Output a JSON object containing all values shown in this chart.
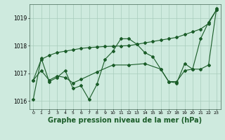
{
  "background_color": "#ceeade",
  "grid_color": "#a8ccbc",
  "line_color": "#1a5c28",
  "xlabel": "Graphe pression niveau de la mer (hPa)",
  "xlabel_fontsize": 7,
  "ylim": [
    1015.7,
    1019.5
  ],
  "xlim": [
    -0.5,
    23.5
  ],
  "yticks": [
    1016,
    1017,
    1018,
    1019
  ],
  "ytick_fontsize": 5.5,
  "xtick_fontsize": 4.5,
  "line1_x": [
    0,
    1,
    2,
    3,
    4,
    5,
    6,
    7,
    8,
    9,
    10,
    11,
    12,
    13,
    14,
    15,
    16,
    17,
    18,
    19,
    20,
    21,
    22,
    23
  ],
  "line1_y": [
    1016.05,
    1017.55,
    1016.7,
    1016.85,
    1017.1,
    1016.45,
    1016.55,
    1016.05,
    1016.6,
    1017.5,
    1017.8,
    1018.25,
    1018.25,
    1018.05,
    1017.75,
    1017.6,
    1017.15,
    1016.7,
    1016.65,
    1017.35,
    1017.15,
    1018.25,
    1018.85,
    1019.3
  ],
  "line2_x": [
    0,
    1,
    2,
    3,
    4,
    5,
    6,
    7,
    8,
    9,
    10,
    11,
    12,
    13,
    14,
    15,
    16,
    17,
    18,
    19,
    20,
    21,
    22,
    23
  ],
  "line2_y": [
    1016.75,
    1017.5,
    1017.65,
    1017.75,
    1017.8,
    1017.85,
    1017.9,
    1017.93,
    1017.95,
    1017.97,
    1017.98,
    1017.99,
    1018.0,
    1018.05,
    1018.1,
    1018.15,
    1018.2,
    1018.25,
    1018.3,
    1018.4,
    1018.5,
    1018.6,
    1018.8,
    1019.3
  ],
  "line3_x": [
    0,
    1,
    2,
    3,
    4,
    5,
    6,
    8,
    10,
    12,
    14,
    16,
    17,
    18,
    19,
    20,
    21,
    22,
    23
  ],
  "line3_y": [
    1016.75,
    1017.1,
    1016.75,
    1016.9,
    1016.85,
    1016.65,
    1016.78,
    1017.05,
    1017.3,
    1017.3,
    1017.35,
    1017.15,
    1016.7,
    1016.7,
    1017.1,
    1017.15,
    1017.15,
    1017.3,
    1019.35
  ]
}
